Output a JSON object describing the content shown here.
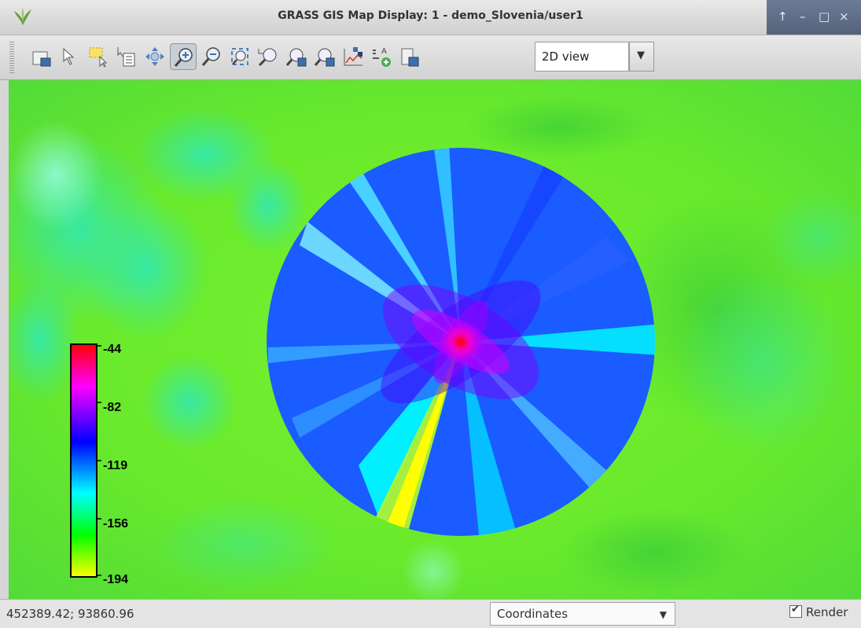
{
  "window": {
    "title": "GRASS GIS Map Display: 1 - demo_Slovenia/user1",
    "controls": [
      "↑",
      "–",
      "□",
      "×"
    ]
  },
  "toolbar": {
    "tools": [
      {
        "name": "add-map-layer",
        "icon": "layer-add-icon"
      },
      {
        "name": "pointer",
        "icon": "pointer-icon"
      },
      {
        "name": "select-vector",
        "icon": "select-icon"
      },
      {
        "name": "query",
        "icon": "query-icon"
      },
      {
        "name": "pan",
        "icon": "pan-icon"
      },
      {
        "name": "zoom-in",
        "icon": "zoom-in-icon",
        "active": true
      },
      {
        "name": "zoom-out",
        "icon": "zoom-out-icon"
      },
      {
        "name": "zoom-extent",
        "icon": "zoom-extent-icon"
      },
      {
        "name": "zoom-back",
        "icon": "zoom-back-icon"
      },
      {
        "name": "zoom-region",
        "icon": "zoom-region-icon"
      },
      {
        "name": "zoom-menu",
        "icon": "zoom-menu-icon"
      },
      {
        "name": "analyze",
        "icon": "analyze-icon"
      },
      {
        "name": "overlay",
        "icon": "overlay-icon"
      },
      {
        "name": "save",
        "icon": "save-map-icon"
      }
    ],
    "view_mode": "2D view"
  },
  "map": {
    "legend": {
      "labels": [
        "-44",
        "-82",
        "-119",
        "-156",
        "-194"
      ],
      "gradient": [
        "#ff0000",
        "#ff00ff",
        "#0000ff",
        "#00ffff",
        "#00ff00",
        "#ffff00"
      ]
    },
    "background_color": "#5fe82a",
    "highlight_colors": [
      "#ff00ff",
      "#0000ff",
      "#00ffff",
      "#ffff00"
    ]
  },
  "status": {
    "coordinates": "452389.42; 93860.96",
    "display_mode": "Coordinates",
    "render_label": "Render",
    "render_checked": true
  }
}
